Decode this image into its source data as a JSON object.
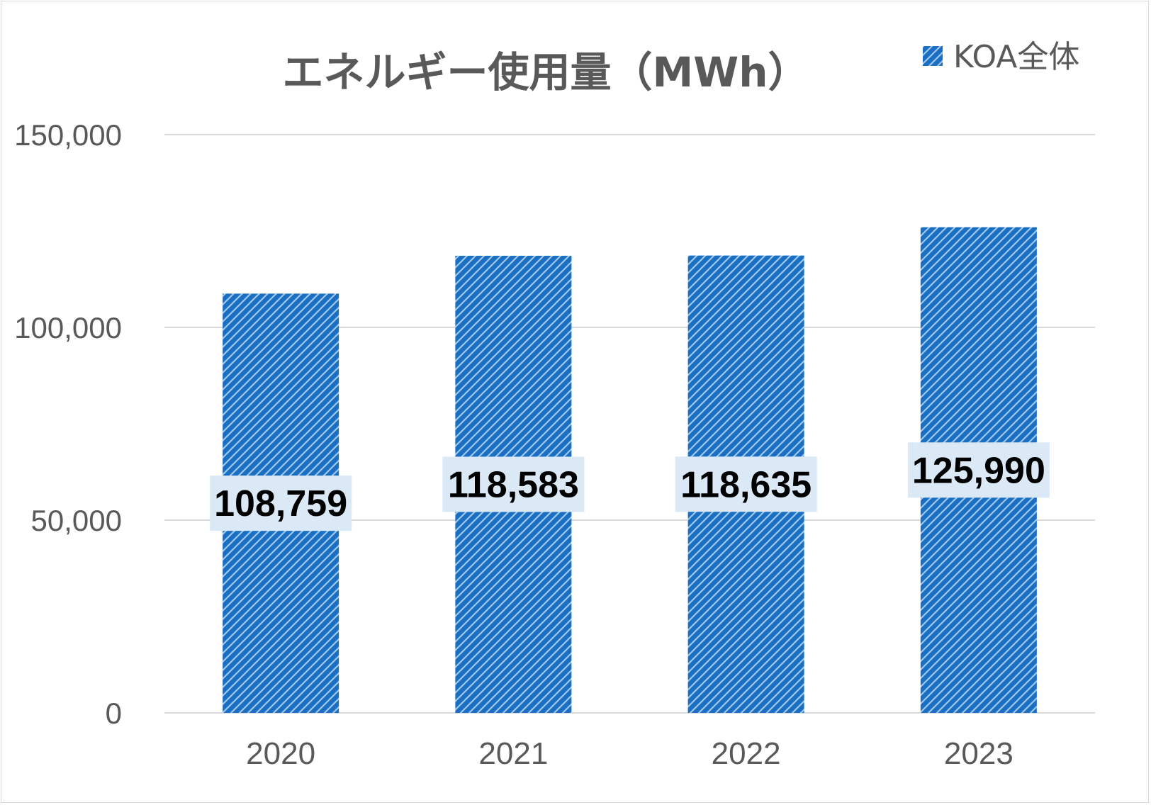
{
  "chart_data": {
    "type": "bar",
    "title": "エネルギー使用量（MWh）",
    "xlabel": "",
    "ylabel": "",
    "categories": [
      "2020",
      "2021",
      "2022",
      "2023"
    ],
    "series": [
      {
        "name": "KOA全体",
        "values": [
          108759,
          118583,
          118635,
          125990
        ],
        "color": "#1b6fc2",
        "pattern": "diagonal-hatch"
      }
    ],
    "data_labels": [
      "108,759",
      "118,583",
      "118,635",
      "125,990"
    ],
    "ylim": [
      0,
      150000
    ],
    "yticks": [
      0,
      50000,
      100000,
      150000
    ],
    "ytick_labels": [
      "0",
      "50,000",
      "100,000",
      "150,000"
    ],
    "grid": true,
    "legend": "top-right"
  }
}
